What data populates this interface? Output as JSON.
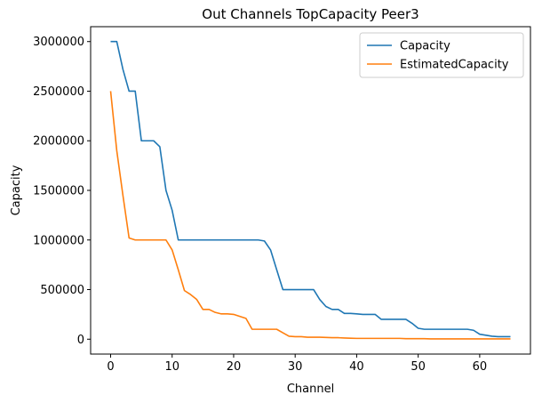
{
  "chart_data": {
    "type": "line",
    "title": "Out Channels TopCapacity Peer3",
    "xlabel": "Channel",
    "ylabel": "Capacity",
    "xlim": [
      -3.25,
      68.25
    ],
    "ylim": [
      -150000,
      3150000
    ],
    "xticks": [
      0,
      10,
      20,
      30,
      40,
      50,
      60
    ],
    "yticks": [
      0,
      500000,
      1000000,
      1500000,
      2000000,
      2500000,
      3000000
    ],
    "xtick_labels": [
      "0",
      "10",
      "20",
      "30",
      "40",
      "50",
      "60"
    ],
    "ytick_labels": [
      "0",
      "500000",
      "1000000",
      "1500000",
      "2000000",
      "2500000",
      "3000000"
    ],
    "grid": false,
    "legend_position": "top-right",
    "x": [
      0,
      1,
      2,
      3,
      4,
      5,
      6,
      7,
      8,
      9,
      10,
      11,
      12,
      13,
      14,
      15,
      16,
      17,
      18,
      19,
      20,
      21,
      22,
      23,
      24,
      25,
      26,
      27,
      28,
      29,
      30,
      31,
      32,
      33,
      34,
      35,
      36,
      37,
      38,
      39,
      40,
      41,
      42,
      43,
      44,
      45,
      46,
      47,
      48,
      49,
      50,
      51,
      52,
      53,
      54,
      55,
      56,
      57,
      58,
      59,
      60,
      61,
      62,
      63,
      64,
      65
    ],
    "series": [
      {
        "name": "Capacity",
        "color": "#1f77b4",
        "values": [
          3000000,
          3000000,
          2720000,
          2500000,
          2500000,
          2000000,
          2000000,
          2000000,
          1940000,
          1500000,
          1300000,
          1000000,
          1000000,
          1000000,
          1000000,
          1000000,
          1000000,
          1000000,
          1000000,
          1000000,
          1000000,
          1000000,
          1000000,
          1000000,
          1000000,
          990000,
          900000,
          700000,
          500000,
          500000,
          500000,
          500000,
          500000,
          500000,
          400000,
          330000,
          300000,
          300000,
          260000,
          260000,
          255000,
          250000,
          250000,
          250000,
          200000,
          200000,
          200000,
          200000,
          200000,
          160000,
          110000,
          100000,
          100000,
          100000,
          100000,
          100000,
          100000,
          100000,
          100000,
          90000,
          50000,
          40000,
          30000,
          25000,
          25000,
          25000
        ]
      },
      {
        "name": "EstimatedCapacity",
        "color": "#ff7f0e",
        "values": [
          2500000,
          1900000,
          1450000,
          1020000,
          1000000,
          1000000,
          1000000,
          1000000,
          1000000,
          1000000,
          900000,
          700000,
          490000,
          450000,
          400000,
          300000,
          300000,
          270000,
          255000,
          255000,
          250000,
          230000,
          210000,
          100000,
          100000,
          100000,
          100000,
          100000,
          65000,
          30000,
          25000,
          25000,
          20000,
          20000,
          20000,
          18000,
          15000,
          15000,
          12000,
          10000,
          8000,
          8000,
          8000,
          8000,
          8000,
          8000,
          8000,
          8000,
          5000,
          5000,
          5000,
          5000,
          3000,
          3000,
          3000,
          3000,
          3000,
          3000,
          3000,
          3000,
          3000,
          3000,
          3000,
          3000,
          3000,
          3000
        ]
      }
    ]
  }
}
